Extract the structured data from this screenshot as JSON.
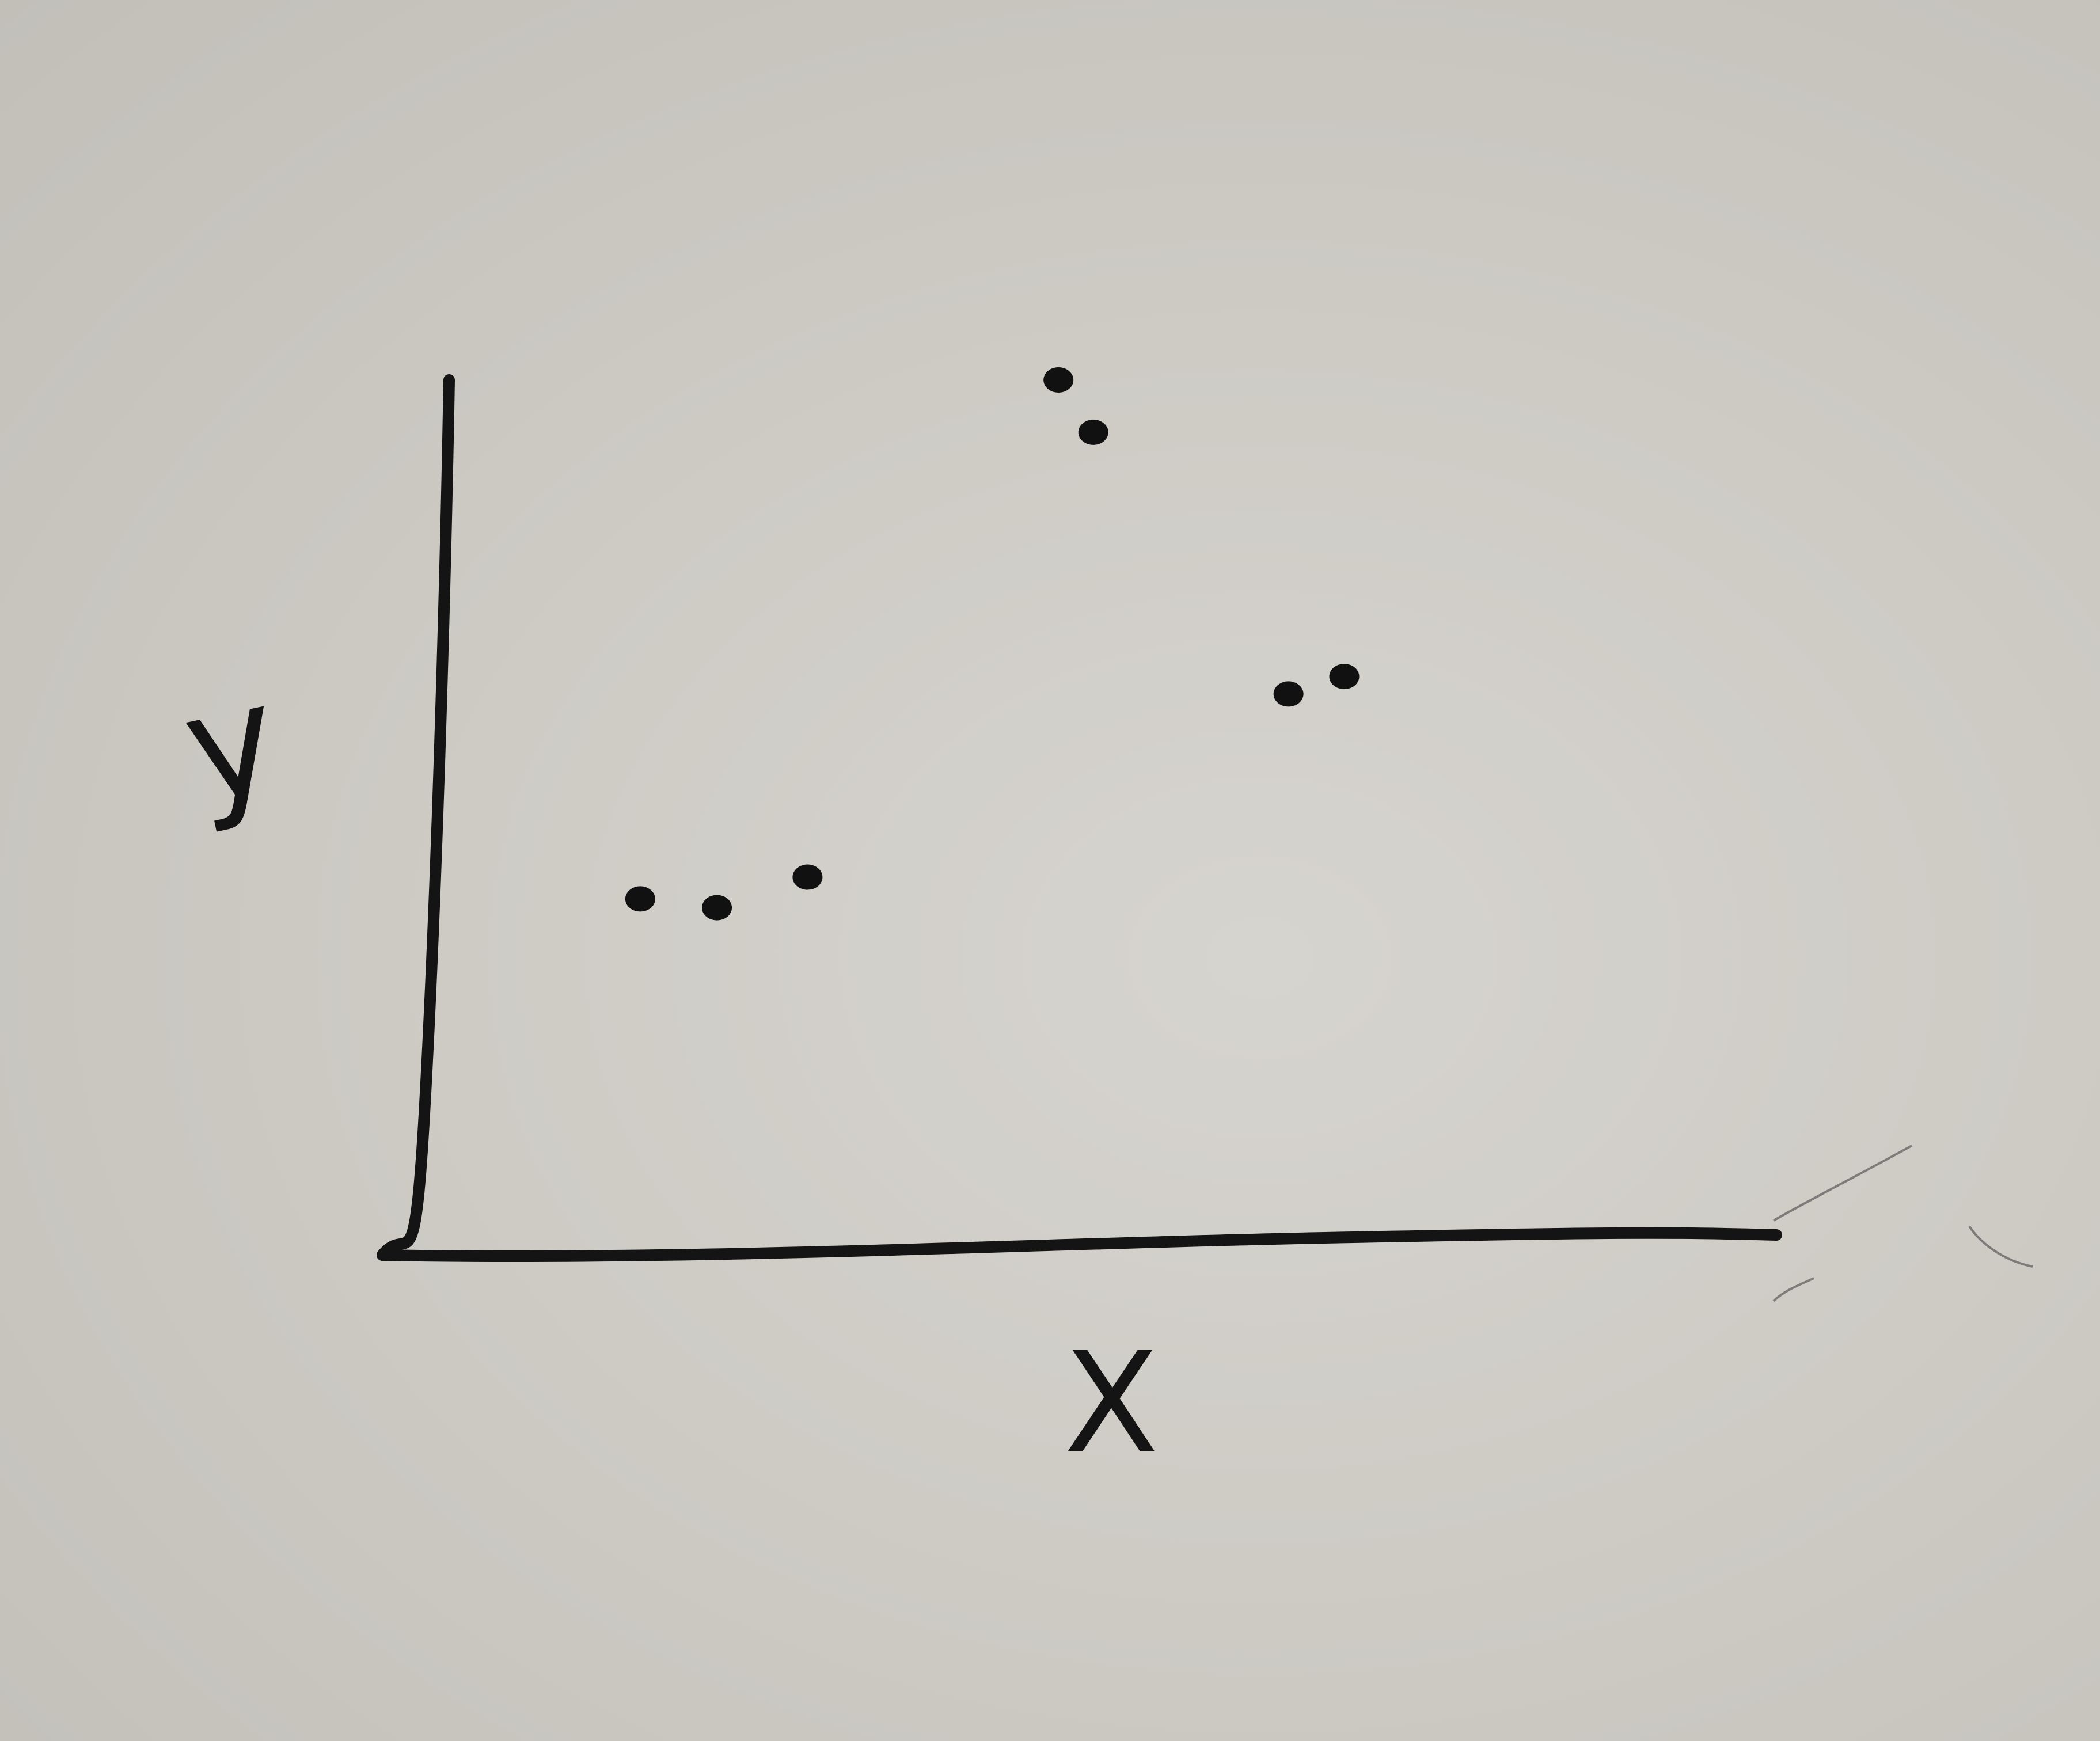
{
  "chart_data": {
    "type": "scatter",
    "title": "",
    "xlabel": "X",
    "ylabel": "y",
    "xlim": [
      0,
      10
    ],
    "ylim": [
      0,
      10
    ],
    "grid": false,
    "ticks": false,
    "series": [
      {
        "points": [
          {
            "x": 1.85,
            "y": 4.05
          },
          {
            "x": 2.4,
            "y": 3.95
          },
          {
            "x": 3.05,
            "y": 4.3
          },
          {
            "x": 4.85,
            "y": 10.0
          },
          {
            "x": 5.1,
            "y": 9.4
          },
          {
            "x": 6.5,
            "y": 6.4
          },
          {
            "x": 6.9,
            "y": 6.6
          }
        ]
      }
    ]
  }
}
